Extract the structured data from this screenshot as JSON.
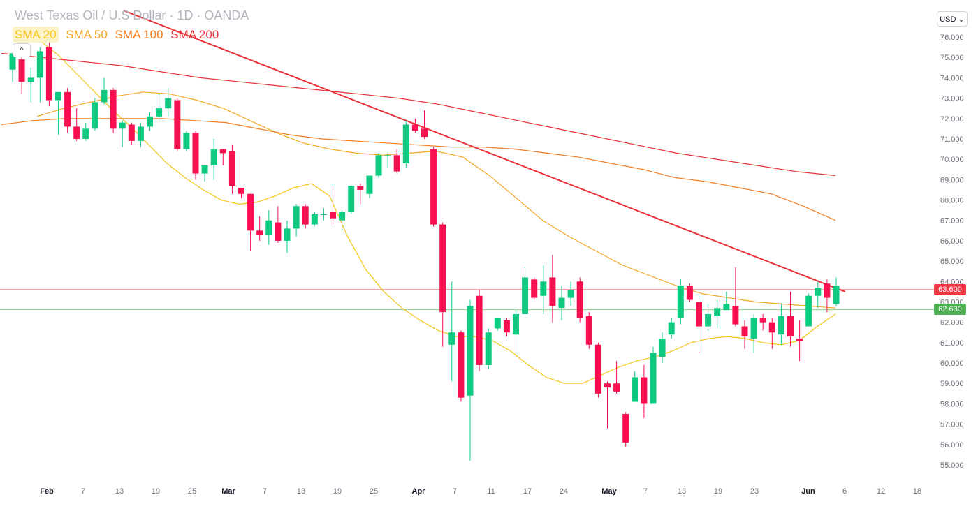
{
  "header": {
    "title": "West Texas Oil / U.S Dollar · 1D · OANDA",
    "currency": "USD",
    "collapse_symbol": "^"
  },
  "legend": [
    {
      "label": "SMA 20",
      "color": "#f5c518"
    },
    {
      "label": "SMA 50",
      "color": "#f5a623"
    },
    {
      "label": "SMA 100",
      "color": "#f57c1f"
    },
    {
      "label": "SMA 200",
      "color": "#e8323a"
    }
  ],
  "chart_data": {
    "type": "candlestick",
    "y_axis": {
      "ylim": [
        54.3,
        77.2
      ],
      "ticks": [
        "76.000",
        "75.000",
        "74.000",
        "73.000",
        "72.000",
        "71.000",
        "70.000",
        "69.000",
        "68.000",
        "67.000",
        "66.000",
        "65.000",
        "64.000",
        "63.000",
        "62.000",
        "61.000",
        "60.000",
        "59.000",
        "58.000",
        "57.000",
        "56.000",
        "55.000"
      ]
    },
    "x_axis": {
      "ticks": [
        {
          "label": "Feb",
          "month": true
        },
        {
          "label": "7"
        },
        {
          "label": "13"
        },
        {
          "label": "19"
        },
        {
          "label": "25"
        },
        {
          "label": "Mar",
          "month": true
        },
        {
          "label": "7"
        },
        {
          "label": "13"
        },
        {
          "label": "19"
        },
        {
          "label": "25"
        },
        {
          "label": "Apr",
          "month": true
        },
        {
          "label": "7"
        },
        {
          "label": "11"
        },
        {
          "label": "17"
        },
        {
          "label": "24"
        },
        {
          "label": "May",
          "month": true
        },
        {
          "label": "7"
        },
        {
          "label": "13"
        },
        {
          "label": "19"
        },
        {
          "label": "23"
        },
        {
          "label": "Jun",
          "month": true
        },
        {
          "label": "6"
        },
        {
          "label": "12"
        },
        {
          "label": "18"
        }
      ]
    },
    "candles": [
      {
        "o": 74.4,
        "h": 75.2,
        "l": 73.8,
        "c": 75.2
      },
      {
        "o": 74.9,
        "h": 75.1,
        "l": 73.2,
        "c": 73.8
      },
      {
        "o": 73.8,
        "h": 74.5,
        "l": 72.8,
        "c": 74.0
      },
      {
        "o": 74.0,
        "h": 75.5,
        "l": 72.8,
        "c": 75.3
      },
      {
        "o": 75.5,
        "h": 75.8,
        "l": 72.6,
        "c": 72.9
      },
      {
        "o": 72.9,
        "h": 73.3,
        "l": 71.2,
        "c": 73.3
      },
      {
        "o": 73.3,
        "h": 73.5,
        "l": 71.3,
        "c": 71.6
      },
      {
        "o": 71.6,
        "h": 72.5,
        "l": 70.9,
        "c": 71.0
      },
      {
        "o": 71.0,
        "h": 71.8,
        "l": 70.9,
        "c": 71.5
      },
      {
        "o": 71.5,
        "h": 73.0,
        "l": 71.4,
        "c": 72.8
      },
      {
        "o": 72.8,
        "h": 74.0,
        "l": 72.7,
        "c": 73.4
      },
      {
        "o": 73.4,
        "h": 73.5,
        "l": 71.3,
        "c": 71.5
      },
      {
        "o": 71.5,
        "h": 71.9,
        "l": 70.6,
        "c": 71.8
      },
      {
        "o": 71.7,
        "h": 71.8,
        "l": 70.7,
        "c": 70.9
      },
      {
        "o": 70.9,
        "h": 71.8,
        "l": 70.6,
        "c": 71.6
      },
      {
        "o": 71.6,
        "h": 72.3,
        "l": 71.4,
        "c": 72.1
      },
      {
        "o": 72.1,
        "h": 73.2,
        "l": 71.8,
        "c": 72.5
      },
      {
        "o": 72.5,
        "h": 73.5,
        "l": 72.1,
        "c": 73.0
      },
      {
        "o": 72.9,
        "h": 73.0,
        "l": 70.4,
        "c": 70.5
      },
      {
        "o": 70.5,
        "h": 71.4,
        "l": 70.4,
        "c": 71.3
      },
      {
        "o": 71.3,
        "h": 71.4,
        "l": 69.0,
        "c": 69.3
      },
      {
        "o": 69.3,
        "h": 69.7,
        "l": 68.9,
        "c": 69.7
      },
      {
        "o": 69.7,
        "h": 71.0,
        "l": 69.0,
        "c": 70.5
      },
      {
        "o": 70.5,
        "h": 70.5,
        "l": 69.7,
        "c": 70.3
      },
      {
        "o": 70.4,
        "h": 70.7,
        "l": 68.3,
        "c": 68.7
      },
      {
        "o": 68.6,
        "h": 68.6,
        "l": 68.1,
        "c": 68.3
      },
      {
        "o": 68.3,
        "h": 68.3,
        "l": 65.5,
        "c": 66.5
      },
      {
        "o": 66.5,
        "h": 67.2,
        "l": 66.0,
        "c": 66.3
      },
      {
        "o": 66.3,
        "h": 67.5,
        "l": 65.8,
        "c": 67.0
      },
      {
        "o": 66.9,
        "h": 67.7,
        "l": 65.9,
        "c": 66.0
      },
      {
        "o": 66.0,
        "h": 67.0,
        "l": 65.4,
        "c": 66.6
      },
      {
        "o": 66.6,
        "h": 67.8,
        "l": 66.2,
        "c": 67.7
      },
      {
        "o": 67.7,
        "h": 67.8,
        "l": 66.6,
        "c": 66.8
      },
      {
        "o": 66.8,
        "h": 67.4,
        "l": 66.7,
        "c": 67.3
      },
      {
        "o": 67.3,
        "h": 67.6,
        "l": 67.0,
        "c": 67.3
      },
      {
        "o": 67.4,
        "h": 68.7,
        "l": 66.8,
        "c": 67.1
      },
      {
        "o": 67.0,
        "h": 67.5,
        "l": 66.5,
        "c": 67.4
      },
      {
        "o": 67.4,
        "h": 68.7,
        "l": 67.3,
        "c": 68.7
      },
      {
        "o": 68.7,
        "h": 68.8,
        "l": 67.8,
        "c": 68.5
      },
      {
        "o": 68.3,
        "h": 69.2,
        "l": 68.1,
        "c": 69.2
      },
      {
        "o": 69.2,
        "h": 70.3,
        "l": 69.1,
        "c": 70.2
      },
      {
        "o": 70.2,
        "h": 70.3,
        "l": 69.6,
        "c": 70.2
      },
      {
        "o": 70.2,
        "h": 70.5,
        "l": 69.3,
        "c": 69.4
      },
      {
        "o": 69.8,
        "h": 71.9,
        "l": 69.6,
        "c": 71.7
      },
      {
        "o": 71.7,
        "h": 72.0,
        "l": 71.3,
        "c": 71.4
      },
      {
        "o": 71.5,
        "h": 72.4,
        "l": 71.0,
        "c": 71.1
      },
      {
        "o": 70.5,
        "h": 70.6,
        "l": 66.7,
        "c": 66.8
      },
      {
        "o": 66.8,
        "h": 66.9,
        "l": 60.8,
        "c": 62.5
      },
      {
        "o": 60.9,
        "h": 64.0,
        "l": 59.1,
        "c": 61.5
      },
      {
        "o": 61.5,
        "h": 61.6,
        "l": 58.1,
        "c": 58.3
      },
      {
        "o": 58.4,
        "h": 63.1,
        "l": 55.2,
        "c": 62.8
      },
      {
        "o": 63.3,
        "h": 63.6,
        "l": 59.6,
        "c": 59.9
      },
      {
        "o": 59.9,
        "h": 61.7,
        "l": 59.7,
        "c": 61.5
      },
      {
        "o": 61.7,
        "h": 62.2,
        "l": 61.6,
        "c": 62.2
      },
      {
        "o": 62.1,
        "h": 62.2,
        "l": 61.3,
        "c": 61.5
      },
      {
        "o": 61.4,
        "h": 62.6,
        "l": 60.4,
        "c": 62.4
      },
      {
        "o": 62.4,
        "h": 64.7,
        "l": 62.4,
        "c": 64.2
      },
      {
        "o": 64.1,
        "h": 64.2,
        "l": 63.1,
        "c": 63.2
      },
      {
        "o": 63.3,
        "h": 64.8,
        "l": 62.4,
        "c": 64.0
      },
      {
        "o": 64.2,
        "h": 65.3,
        "l": 62.0,
        "c": 62.8
      },
      {
        "o": 62.7,
        "h": 63.8,
        "l": 62.1,
        "c": 63.2
      },
      {
        "o": 63.2,
        "h": 64.0,
        "l": 62.8,
        "c": 63.6
      },
      {
        "o": 64.0,
        "h": 64.2,
        "l": 62.0,
        "c": 62.2
      },
      {
        "o": 62.3,
        "h": 62.5,
        "l": 60.7,
        "c": 60.9
      },
      {
        "o": 60.9,
        "h": 61.0,
        "l": 58.3,
        "c": 58.5
      },
      {
        "o": 59.0,
        "h": 59.1,
        "l": 56.8,
        "c": 58.8
      },
      {
        "o": 59.0,
        "h": 60.1,
        "l": 58.5,
        "c": 58.6
      },
      {
        "o": 57.5,
        "h": 57.6,
        "l": 55.9,
        "c": 56.1
      },
      {
        "o": 58.1,
        "h": 59.6,
        "l": 58.1,
        "c": 59.3
      },
      {
        "o": 59.3,
        "h": 59.9,
        "l": 57.3,
        "c": 58.0
      },
      {
        "o": 58.0,
        "h": 60.8,
        "l": 58.0,
        "c": 60.5
      },
      {
        "o": 60.3,
        "h": 61.5,
        "l": 60.0,
        "c": 61.2
      },
      {
        "o": 61.4,
        "h": 62.2,
        "l": 61.2,
        "c": 62.0
      },
      {
        "o": 62.2,
        "h": 64.1,
        "l": 61.9,
        "c": 63.8
      },
      {
        "o": 63.8,
        "h": 63.9,
        "l": 63.0,
        "c": 63.1
      },
      {
        "o": 63.0,
        "h": 63.2,
        "l": 60.5,
        "c": 61.8
      },
      {
        "o": 61.8,
        "h": 62.9,
        "l": 61.6,
        "c": 62.4
      },
      {
        "o": 62.3,
        "h": 63.1,
        "l": 61.7,
        "c": 62.7
      },
      {
        "o": 62.6,
        "h": 63.5,
        "l": 62.6,
        "c": 62.9
      },
      {
        "o": 62.8,
        "h": 64.7,
        "l": 61.8,
        "c": 61.9
      },
      {
        "o": 61.8,
        "h": 62.1,
        "l": 60.7,
        "c": 61.3
      },
      {
        "o": 61.2,
        "h": 62.4,
        "l": 60.5,
        "c": 62.2
      },
      {
        "o": 62.2,
        "h": 62.4,
        "l": 61.6,
        "c": 62.0
      },
      {
        "o": 62.0,
        "h": 62.2,
        "l": 60.7,
        "c": 61.5
      },
      {
        "o": 61.4,
        "h": 62.9,
        "l": 60.9,
        "c": 62.3
      },
      {
        "o": 62.3,
        "h": 63.5,
        "l": 60.8,
        "c": 61.3
      },
      {
        "o": 61.2,
        "h": 62.1,
        "l": 60.1,
        "c": 61.1
      },
      {
        "o": 61.8,
        "h": 63.4,
        "l": 61.8,
        "c": 63.3
      },
      {
        "o": 63.3,
        "h": 64.0,
        "l": 62.7,
        "c": 63.7
      },
      {
        "o": 63.9,
        "h": 64.1,
        "l": 62.5,
        "c": 63.2
      },
      {
        "o": 62.9,
        "h": 64.2,
        "l": 62.8,
        "c": 63.8
      }
    ],
    "sma": [
      {
        "label": "SMA 20",
        "color": "#f5c518",
        "values": [
          75.8,
          75.1,
          74.2,
          73.3,
          72.4,
          71.6,
          70.7,
          69.8,
          69.1,
          68.5,
          68.0,
          67.8,
          67.9,
          68.2,
          68.6,
          68.8,
          68.2,
          66.2,
          64.6,
          63.5,
          62.7,
          62.1,
          61.6,
          61.3,
          61.3,
          61.1,
          60.6,
          59.9,
          59.3,
          59.0,
          59.0,
          59.4,
          59.8,
          60.1,
          60.3,
          60.6,
          61.0,
          61.2,
          61.3,
          61.2,
          61.0,
          60.9,
          61.1,
          61.8,
          62.4
        ]
      },
      {
        "label": "SMA 50",
        "color": "#f5a623",
        "values": [
          72.1,
          72.5,
          72.8,
          73.1,
          73.3,
          73.2,
          72.9,
          72.5,
          71.9,
          71.3,
          70.8,
          70.5,
          70.3,
          70.2,
          70.3,
          70.4,
          70.1,
          69.2,
          68.1,
          67.0,
          66.2,
          65.5,
          64.8,
          64.3,
          63.8,
          63.4,
          63.2,
          63.0,
          62.9,
          62.8,
          62.7
        ]
      },
      {
        "label": "SMA 100",
        "color": "#f57c1f",
        "values": [
          71.7,
          71.9,
          72.0,
          72.0,
          72.0,
          72.0,
          71.9,
          71.8,
          71.5,
          71.2,
          71.0,
          70.9,
          70.8,
          70.7,
          70.6,
          70.6,
          70.5,
          70.3,
          70.1,
          69.8,
          69.5,
          69.1,
          68.9,
          68.6,
          68.3,
          67.7,
          67.0
        ]
      },
      {
        "label": "SMA 200",
        "color": "#e8323a",
        "values": [
          75.2,
          75.0,
          74.8,
          74.6,
          74.3,
          74.0,
          73.8,
          73.6,
          73.4,
          73.2,
          73.0,
          72.7,
          72.3,
          71.9,
          71.5,
          71.1,
          70.7,
          70.3,
          70.0,
          69.7,
          69.4,
          69.2
        ]
      }
    ],
    "trendline": {
      "color": "#e8323a",
      "from": {
        "index": 4.5,
        "price": 77.3
      },
      "to": {
        "index": 89.5,
        "price": 63.5
      }
    },
    "horizontal_lines": [
      {
        "price": 63.6,
        "label": "63.600",
        "color": "#f23645"
      },
      {
        "price": 62.63,
        "label": "62.630",
        "color": "#4caf50"
      }
    ]
  }
}
